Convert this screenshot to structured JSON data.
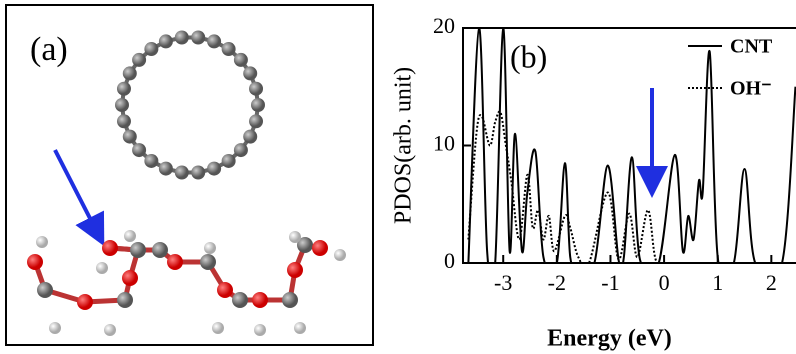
{
  "panel_a": {
    "label": "(a)"
  },
  "chart_data": {
    "type": "line",
    "title": "(b)",
    "x_label": "Energy (eV)",
    "y_label": "PDOS(arb. unit)",
    "xlim": [
      -3.75,
      2.46
    ],
    "ylim": [
      0,
      20
    ],
    "xticks": [
      -3,
      -2,
      -1,
      0,
      1,
      2
    ],
    "yticks": [
      0,
      10,
      20
    ],
    "legend": "upper right",
    "series": [
      {
        "name": "CNT",
        "color": "#000000",
        "dash": "solid",
        "x": [
          -3.65,
          -3.45,
          -3.3,
          -3.15,
          -3.0,
          -2.88,
          -2.78,
          -2.65,
          -2.55,
          -2.4,
          -2.25,
          -2.0,
          -1.85,
          -1.75,
          -1.6,
          -1.3,
          -1.05,
          -0.85,
          -0.75,
          -0.6,
          -0.45,
          -0.1,
          0.2,
          0.35,
          0.45,
          0.55,
          0.65,
          0.72,
          0.85,
          1.0,
          1.3,
          1.5,
          1.7,
          2.2,
          2.45
        ],
        "values": [
          0,
          20,
          1,
          0,
          20,
          1,
          11,
          1,
          6,
          9.5,
          0.5,
          0,
          8.5,
          0.5,
          0,
          0,
          8.3,
          0.3,
          0.5,
          9,
          0.3,
          0,
          9.2,
          1,
          4,
          2,
          7,
          6,
          18,
          0.5,
          0,
          8,
          0,
          0,
          15
        ]
      },
      {
        "name": "OH⁻",
        "color": "#000000",
        "dash": "dotted",
        "x": [
          -3.65,
          -3.5,
          -3.4,
          -3.25,
          -3.15,
          -3.05,
          -2.95,
          -2.85,
          -2.7,
          -2.55,
          -2.45,
          -2.35,
          -2.25,
          -2.15,
          -2.05,
          -1.85,
          -1.75,
          -1.6,
          -1.4,
          -1.05,
          -0.85,
          -0.65,
          -0.5,
          -0.3,
          -0.15,
          0.1,
          2.45
        ],
        "values": [
          2,
          11,
          12.5,
          10,
          12,
          12.8,
          10,
          7,
          2,
          7.5,
          3,
          4.5,
          2,
          4,
          1,
          4,
          3,
          0.5,
          0,
          6,
          0.3,
          4.2,
          0.5,
          4.5,
          0.2,
          0,
          0
        ]
      }
    ]
  }
}
